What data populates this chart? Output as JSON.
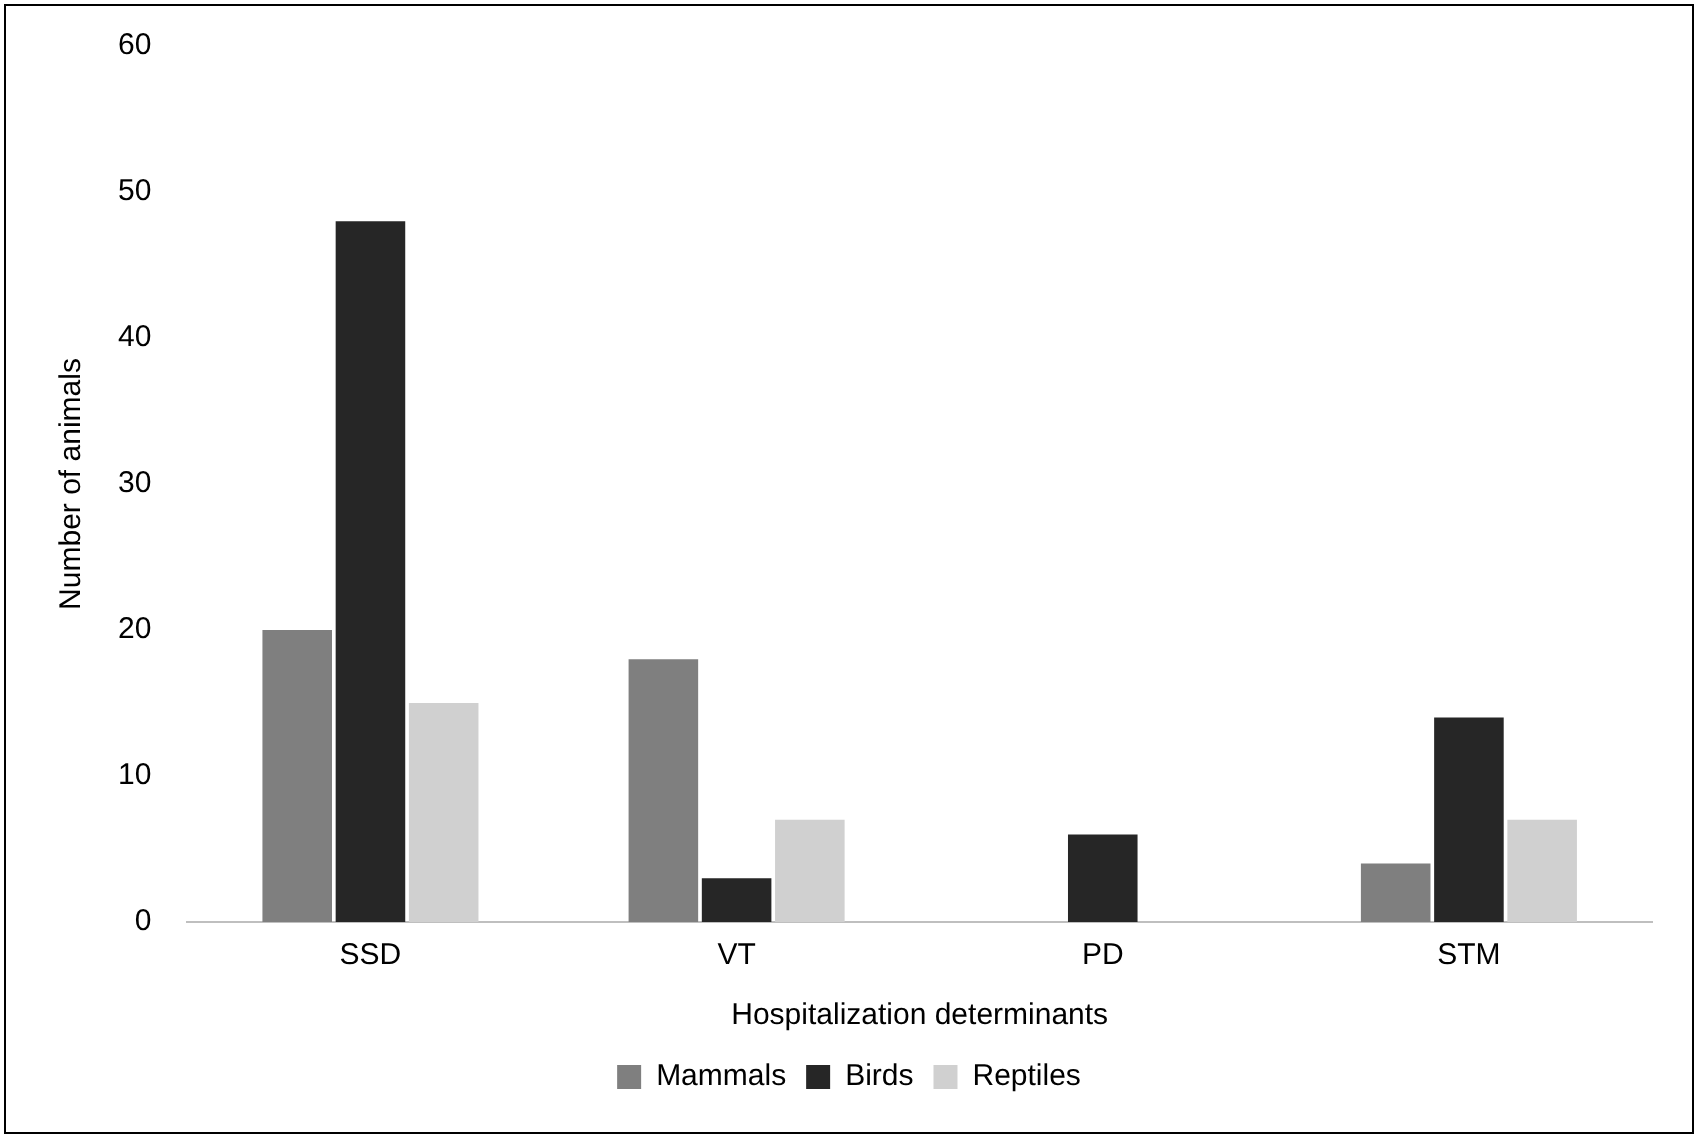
{
  "chart_data": {
    "type": "bar",
    "xlabel": "Hospitalization determinants",
    "ylabel": "Number of animals",
    "categories": [
      "SSD",
      "VT",
      "PD",
      "STM"
    ],
    "series": [
      {
        "name": "Mammals",
        "color": "#7f7f7f",
        "values": [
          20,
          18,
          0,
          4
        ]
      },
      {
        "name": "Birds",
        "color": "#262626",
        "values": [
          48,
          3,
          6,
          14
        ]
      },
      {
        "name": "Reptiles",
        "color": "#d0d0d0",
        "values": [
          15,
          7,
          0,
          7
        ]
      }
    ],
    "ylim": [
      0,
      60
    ],
    "yticks": [
      0,
      10,
      20,
      30,
      40,
      50,
      60
    ],
    "grid": false,
    "legend": "bottom"
  }
}
